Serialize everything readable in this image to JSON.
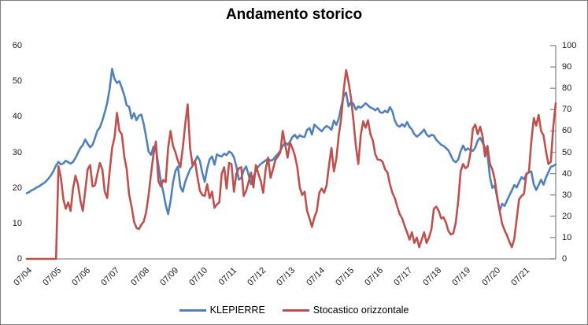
{
  "title": "Andamento storico",
  "colors": {
    "series_klepierre": "#4F81BD",
    "series_stocastico": "#C0504D",
    "axis_line": "#8C8C8C",
    "label_text": "#1A1A1A",
    "border": "#7F7F7F",
    "background": "#FFFFFF"
  },
  "legend": {
    "items": [
      {
        "label": "KLEPIERRE",
        "color": "#4F81BD"
      },
      {
        "label": "Stocastico orizzontale",
        "color": "#C0504D"
      }
    ]
  },
  "chart_data": {
    "type": "line",
    "title": "Andamento storico",
    "xlabel": "",
    "ylabel_left": "",
    "ylabel_right": "",
    "grid": false,
    "legend_position": "bottom",
    "left_axis": {
      "min": 0,
      "max": 60,
      "step": 10
    },
    "right_axis": {
      "min": 0,
      "max": 100,
      "step": 10
    },
    "x_tick_labels": [
      "07/04",
      "07/05",
      "07/06",
      "07/07",
      "07/08",
      "07/09",
      "07/10",
      "07/11",
      "07/12",
      "07/13",
      "07/14",
      "07/15",
      "07/16",
      "07/17",
      "07/18",
      "07/19",
      "07/20",
      "07/21"
    ],
    "points_per_x_tick": 12,
    "series": [
      {
        "name": "KLEPIERRE",
        "axis": "left",
        "color": "#4F81BD",
        "values": [
          18.5,
          18.8,
          19.3,
          19.6,
          20.1,
          20.4,
          20.9,
          21.3,
          21.9,
          22.7,
          23.6,
          24.8,
          26.3,
          27.3,
          26.6,
          26.9,
          27.6,
          27.2,
          26.8,
          27.3,
          28.4,
          29.8,
          31.2,
          32.0,
          33.6,
          32.4,
          31.4,
          32.1,
          34.0,
          36.1,
          37.0,
          38.9,
          41.2,
          43.9,
          47.9,
          53.5,
          50.6,
          49.5,
          50.0,
          48.1,
          46.0,
          43.2,
          42.8,
          39.5,
          41.0,
          39.0,
          40.3,
          40.6,
          38.0,
          34.2,
          30.2,
          29.3,
          31.6,
          30.9,
          26.5,
          21.8,
          18.9,
          15.2,
          12.6,
          16.3,
          21.5,
          24.8,
          26.0,
          20.3,
          18.9,
          21.7,
          23.5,
          25.2,
          26.1,
          27.4,
          28.9,
          27.6,
          24.2,
          21.7,
          25.4,
          28.0,
          28.8,
          26.5,
          29.4,
          29.0,
          28.8,
          29.6,
          29.2,
          30.2,
          29.8,
          28.6,
          26.0,
          22.3,
          22.8,
          24.9,
          26.0,
          23.7,
          21.0,
          23.0,
          24.9,
          26.0,
          26.7,
          27.2,
          27.7,
          28.2,
          27.6,
          27.9,
          28.8,
          29.5,
          30.4,
          31.8,
          32.8,
          32.1,
          33.0,
          34.3,
          34.9,
          33.9,
          34.8,
          34.4,
          34.3,
          36.3,
          36.8,
          35.0,
          37.8,
          37.1,
          36.5,
          35.9,
          36.8,
          37.4,
          37.0,
          36.3,
          38.9,
          37.7,
          39.5,
          42.8,
          45.8,
          46.8,
          42.9,
          44.1,
          43.6,
          42.0,
          42.9,
          42.5,
          43.1,
          43.8,
          43.2,
          42.6,
          42.3,
          41.8,
          42.4,
          41.2,
          41.1,
          41.7,
          41.2,
          42.7,
          41.5,
          38.9,
          37.6,
          37.2,
          37.9,
          37.2,
          38.5,
          37.2,
          36.4,
          35.1,
          34.4,
          34.9,
          35.6,
          36.4,
          35.0,
          34.4,
          34.9,
          34.7,
          33.5,
          32.8,
          32.1,
          31.8,
          31.2,
          30.5,
          29.1,
          27.7,
          27.2,
          27.9,
          30.3,
          31.9,
          30.5,
          31.1,
          30.6,
          30.4,
          31.3,
          33.3,
          34.1,
          32.7,
          31.2,
          29.6,
          23.0,
          20.0,
          20.7,
          17.1,
          13.5,
          15.5,
          14.9,
          16.4,
          17.9,
          19.3,
          20.8,
          20.1,
          21.6,
          23.0,
          22.4,
          23.8,
          24.4,
          24.6,
          21.0,
          19.4,
          20.8,
          22.3,
          20.9,
          22.9,
          24.4,
          25.9,
          26.2,
          26.6
        ]
      },
      {
        "name": "Stocastico orizzontale",
        "axis": "right",
        "color": "#C0504D",
        "values": [
          0,
          0,
          0,
          0,
          0,
          0,
          0,
          0,
          0,
          0,
          0,
          0,
          0,
          43.5,
          38,
          28,
          23.5,
          26.5,
          22.5,
          33,
          39,
          35,
          27.5,
          22.5,
          32,
          42,
          44,
          34,
          34.5,
          40,
          45,
          42,
          31.5,
          28.5,
          41,
          52,
          57,
          68.5,
          60,
          58.5,
          48,
          42,
          30,
          24.5,
          17.5,
          14.5,
          14,
          16,
          17.5,
          22,
          30,
          40,
          49,
          55,
          36.5,
          34,
          37,
          36,
          52,
          60,
          53,
          50,
          46,
          43,
          52,
          63,
          72.5,
          52,
          44,
          46,
          38.5,
          32,
          30,
          29.5,
          35,
          28.5,
          31.5,
          24,
          25.5,
          26.5,
          40,
          43,
          33,
          45,
          44.5,
          31.5,
          40,
          42.5,
          43,
          29.5,
          32,
          36,
          40.5,
          33.5,
          44,
          40,
          36.5,
          31,
          42,
          47.5,
          38,
          42,
          46.5,
          48,
          50,
          60,
          53.5,
          47.5,
          54.5,
          52,
          48.5,
          43,
          33.5,
          30,
          31.5,
          22.5,
          19,
          15,
          19.5,
          22.5,
          31,
          33,
          31,
          34.5,
          44,
          52,
          41,
          47,
          58,
          66,
          79,
          88.5,
          83,
          75.5,
          65,
          53,
          44.5,
          58,
          64.5,
          61.5,
          65,
          58.5,
          55.5,
          49,
          46.5,
          46.5,
          45.5,
          42,
          40.5,
          35,
          31,
          28.5,
          24.5,
          21,
          19,
          15.5,
          12.5,
          9,
          12.5,
          7.5,
          10,
          5.5,
          9,
          12.5,
          7.5,
          10,
          14,
          23.5,
          24.5,
          22.5,
          19,
          19.5,
          17,
          13,
          11.5,
          12,
          17,
          27,
          41,
          44.5,
          42.5,
          43.5,
          49.5,
          61,
          63,
          58.5,
          62,
          57.5,
          48,
          53,
          44.5,
          42,
          37,
          29,
          22.5,
          16.5,
          13.5,
          11,
          8,
          5.5,
          9.5,
          19,
          28,
          29.5,
          30.5,
          40,
          40.5,
          55,
          66,
          62.5,
          67.5,
          60,
          58,
          50.5,
          44.5,
          45.5,
          62,
          73
        ]
      }
    ]
  }
}
